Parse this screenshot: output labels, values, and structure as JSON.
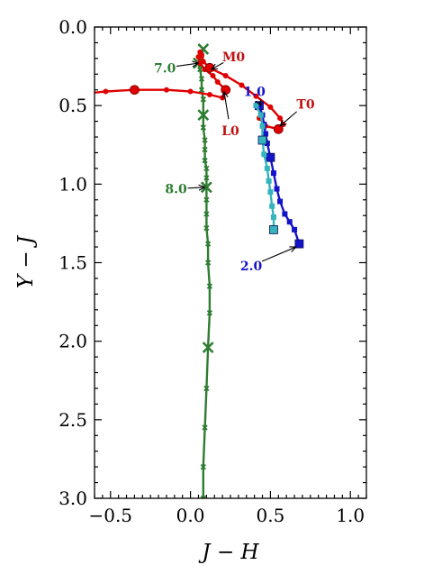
{
  "chart_data": {
    "type": "line",
    "xlabel": "J − H",
    "ylabel": "Y − J",
    "xlim": [
      -0.6,
      1.1
    ],
    "ylim": [
      3.0,
      0.0
    ],
    "y_inverted": true,
    "x_major_ticks": [
      -0.5,
      0.0,
      0.5,
      1.0
    ],
    "x_tick_labels": [
      "−0.5",
      "0.0",
      "0.5",
      "1.0"
    ],
    "y_major_ticks": [
      0.0,
      0.5,
      1.0,
      1.5,
      2.0,
      2.5,
      3.0
    ],
    "y_tick_labels": [
      "0.0",
      "0.5",
      "1.0",
      "1.5",
      "2.0",
      "2.5",
      "3.0"
    ],
    "grid": false,
    "series": [
      {
        "color": "#2e7d32",
        "marker": "x",
        "points": [
          {
            "x": 0.08,
            "y": 0.14,
            "big": true
          },
          {
            "x": 0.07,
            "y": 0.18
          },
          {
            "x": 0.06,
            "y": 0.2
          },
          {
            "x": 0.05,
            "y": 0.23,
            "big": true
          },
          {
            "x": 0.06,
            "y": 0.27
          },
          {
            "x": 0.07,
            "y": 0.33
          },
          {
            "x": 0.07,
            "y": 0.4
          },
          {
            "x": 0.08,
            "y": 0.46
          },
          {
            "x": 0.08,
            "y": 0.56,
            "big": true
          },
          {
            "x": 0.08,
            "y": 0.64
          },
          {
            "x": 0.09,
            "y": 0.72
          },
          {
            "x": 0.09,
            "y": 0.78
          },
          {
            "x": 0.09,
            "y": 0.85
          },
          {
            "x": 0.1,
            "y": 0.9
          },
          {
            "x": 0.1,
            "y": 0.96
          },
          {
            "x": 0.1,
            "y": 1.02,
            "big": true
          },
          {
            "x": 0.1,
            "y": 1.1
          },
          {
            "x": 0.1,
            "y": 1.19
          },
          {
            "x": 0.1,
            "y": 1.28
          },
          {
            "x": 0.11,
            "y": 1.38
          },
          {
            "x": 0.11,
            "y": 1.5
          },
          {
            "x": 0.12,
            "y": 1.65
          },
          {
            "x": 0.12,
            "y": 1.82
          },
          {
            "x": 0.11,
            "y": 2.04,
            "big": true
          },
          {
            "x": 0.1,
            "y": 2.3
          },
          {
            "x": 0.09,
            "y": 2.55
          },
          {
            "x": 0.08,
            "y": 2.8
          },
          {
            "x": 0.08,
            "y": 3.0
          }
        ]
      },
      {
        "color": "#e00000",
        "marker": "o",
        "points": [
          {
            "x": -0.62,
            "y": 0.42
          },
          {
            "x": -0.53,
            "y": 0.41
          },
          {
            "x": -0.35,
            "y": 0.4,
            "big": true
          },
          {
            "x": -0.15,
            "y": 0.4
          },
          {
            "x": 0.0,
            "y": 0.41
          },
          {
            "x": 0.12,
            "y": 0.43
          },
          {
            "x": 0.2,
            "y": 0.45
          },
          {
            "x": 0.22,
            "y": 0.4,
            "big": true
          },
          {
            "x": 0.17,
            "y": 0.35
          },
          {
            "x": 0.14,
            "y": 0.31
          },
          {
            "x": 0.09,
            "y": 0.27
          },
          {
            "x": 0.06,
            "y": 0.23
          },
          {
            "x": 0.05,
            "y": 0.19
          },
          {
            "x": 0.06,
            "y": 0.16
          },
          {
            "x": 0.07,
            "y": 0.18
          },
          {
            "x": 0.08,
            "y": 0.22
          },
          {
            "x": 0.12,
            "y": 0.26,
            "big": true
          },
          {
            "x": 0.22,
            "y": 0.31
          },
          {
            "x": 0.32,
            "y": 0.37
          },
          {
            "x": 0.41,
            "y": 0.44
          },
          {
            "x": 0.5,
            "y": 0.51
          },
          {
            "x": 0.56,
            "y": 0.58
          },
          {
            "x": 0.58,
            "y": 0.62
          },
          {
            "x": 0.55,
            "y": 0.65,
            "big": true
          },
          {
            "x": 0.47,
            "y": 0.63
          },
          {
            "x": 0.43,
            "y": 0.58
          },
          {
            "x": 0.43,
            "y": 0.52
          }
        ]
      },
      {
        "color": "#1414c8",
        "marker": "s",
        "points": [
          {
            "x": 0.43,
            "y": 0.5,
            "big": true
          },
          {
            "x": 0.45,
            "y": 0.56
          },
          {
            "x": 0.46,
            "y": 0.62
          },
          {
            "x": 0.47,
            "y": 0.68
          },
          {
            "x": 0.48,
            "y": 0.74
          },
          {
            "x": 0.5,
            "y": 0.83,
            "big": true
          },
          {
            "x": 0.52,
            "y": 0.93
          },
          {
            "x": 0.54,
            "y": 1.03
          },
          {
            "x": 0.56,
            "y": 1.11
          },
          {
            "x": 0.59,
            "y": 1.19
          },
          {
            "x": 0.62,
            "y": 1.24
          },
          {
            "x": 0.65,
            "y": 1.29
          },
          {
            "x": 0.68,
            "y": 1.38,
            "big": true
          }
        ]
      },
      {
        "color": "#35b4bd",
        "marker": "s",
        "points": [
          {
            "x": 0.41,
            "y": 0.5
          },
          {
            "x": 0.44,
            "y": 0.56
          },
          {
            "x": 0.45,
            "y": 0.63
          },
          {
            "x": 0.45,
            "y": 0.72,
            "big": true
          },
          {
            "x": 0.46,
            "y": 0.81
          },
          {
            "x": 0.48,
            "y": 0.9
          },
          {
            "x": 0.49,
            "y": 0.98
          },
          {
            "x": 0.5,
            "y": 1.05
          },
          {
            "x": 0.51,
            "y": 1.14
          },
          {
            "x": 0.52,
            "y": 1.21
          },
          {
            "x": 0.52,
            "y": 1.29,
            "big": true
          }
        ]
      }
    ],
    "annotations": [
      {
        "text": "7.0",
        "color": "#2e7d32",
        "text_x": -0.16,
        "text_y": 0.26,
        "arrow_to_x": 0.05,
        "arrow_to_y": 0.23
      },
      {
        "text": "8.0",
        "color": "#2e7d32",
        "text_x": -0.09,
        "text_y": 1.03,
        "arrow_to_x": 0.09,
        "arrow_to_y": 1.02
      },
      {
        "text": "M0",
        "color": "#c01010",
        "text_x": 0.27,
        "text_y": 0.19,
        "arrow_to_x": 0.13,
        "arrow_to_y": 0.27
      },
      {
        "text": "L0",
        "color": "#c01010",
        "text_x": 0.25,
        "text_y": 0.66,
        "arrow_to_x": 0.21,
        "arrow_to_y": 0.41
      },
      {
        "text": "T0",
        "color": "#c01010",
        "text_x": 0.72,
        "text_y": 0.49,
        "arrow_to_x": 0.56,
        "arrow_to_y": 0.63
      },
      {
        "text": "1.0",
        "color": "#1414c8",
        "text_x": 0.4,
        "text_y": 0.41,
        "arrow_to_x": 0.44,
        "arrow_to_y": 0.5
      },
      {
        "text": "2.0",
        "color": "#1414c8",
        "text_x": 0.38,
        "text_y": 1.52,
        "arrow_to_x": 0.66,
        "arrow_to_y": 1.4
      }
    ]
  }
}
